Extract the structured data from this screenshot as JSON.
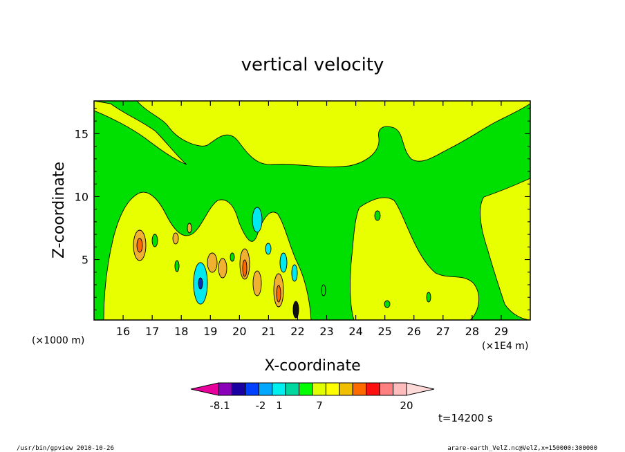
{
  "chart_data": {
    "type": "heatmap",
    "title": "vertical velocity",
    "xlabel": "X-coordinate",
    "ylabel": "Z-coordinate",
    "x_ticks": [
      "16",
      "17",
      "18",
      "19",
      "20",
      "21",
      "22",
      "23",
      "24",
      "25",
      "26",
      "27",
      "28",
      "29"
    ],
    "x_tick_values": [
      16,
      17,
      18,
      19,
      20,
      21,
      22,
      23,
      24,
      25,
      26,
      27,
      28,
      29
    ],
    "y_ticks": [
      "5",
      "10",
      "15"
    ],
    "y_tick_values": [
      5,
      10,
      15
    ],
    "xlim": [
      15,
      30
    ],
    "ylim": [
      0.2,
      17.6
    ],
    "y_unit": "(×1000 m)",
    "x_unit": "(×1E4 m)",
    "time_label": "t=14200 s",
    "colorbar": {
      "colors": [
        "#e8009c",
        "#8a00b8",
        "#1a00a0",
        "#0040ff",
        "#00a8ff",
        "#00f0f0",
        "#00d8a0",
        "#00ff00",
        "#e0ff00",
        "#ffff00",
        "#f0c000",
        "#ff6a00",
        "#ff1010",
        "#ff8080",
        "#ffbcbc",
        "#ffd8d8"
      ],
      "labels": [
        "-8.1",
        "-2",
        "1",
        "7",
        "20"
      ]
    },
    "legend_colors": {
      "background": "#00e000",
      "positive_weak": "#e8ff00",
      "positive_mid": "#f0b030",
      "positive_strong": "#ff6a00",
      "negative_weak": "#00e8f0",
      "negative_strong": "#0030c0"
    }
  },
  "footer": {
    "left": "/usr/bin/gpview  2010-10-26",
    "right": "arare-earth_VelZ.nc@VelZ,x=150000:300000"
  }
}
